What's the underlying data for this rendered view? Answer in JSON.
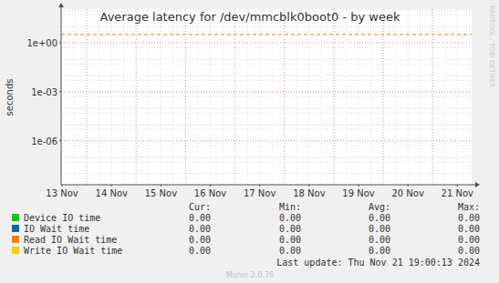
{
  "chart_data": {
    "type": "line",
    "title": "Average latency for /dev/mmcblk0boot0 - by week",
    "y_label": "seconds",
    "side_text": "RRDTOOL / TOBI OETIKER",
    "footer": "Munin 2.0.76",
    "last_update": "Last update: Thu Nov 21 19:00:13 2024",
    "log": "y",
    "grid": true,
    "xlim": [
      13.48,
      21.79
    ],
    "xticks": [
      {
        "value": 13.5,
        "label": "13 Nov"
      },
      {
        "value": 14.5,
        "label": "14 Nov"
      },
      {
        "value": 15.5,
        "label": "15 Nov"
      },
      {
        "value": 16.5,
        "label": "16 Nov"
      },
      {
        "value": 17.5,
        "label": "17 Nov"
      },
      {
        "value": 18.5,
        "label": "18 Nov"
      },
      {
        "value": 19.5,
        "label": "19 Nov"
      },
      {
        "value": 20.5,
        "label": "20 Nov"
      },
      {
        "value": 21.5,
        "label": "21 Nov"
      }
    ],
    "ylim": [
      2e-09,
      115
    ],
    "yticks": [
      {
        "value": 1e-06,
        "label": "1e-06"
      },
      {
        "value": 0.001,
        "label": "1e-03"
      },
      {
        "value": 1,
        "label": "1e+00"
      }
    ],
    "reference_lines": [
      {
        "value": 3.2,
        "color": "#ff8000",
        "line_style": "dashed"
      }
    ],
    "stat_columns": [
      "Cur:",
      "Min:",
      "Avg:",
      "Max:"
    ],
    "series": [
      {
        "name": "Device IO time",
        "color": "#00cc00",
        "values": [
          0,
          0,
          0,
          0
        ],
        "value_labels": [
          "0.00",
          "0.00",
          "0.00",
          "0.00"
        ]
      },
      {
        "name": "IO Wait time",
        "color": "#0066b3",
        "values": [
          0,
          0,
          0,
          0
        ],
        "value_labels": [
          "0.00",
          "0.00",
          "0.00",
          "0.00"
        ]
      },
      {
        "name": "Read IO Wait time",
        "color": "#ff8000",
        "values": [
          0,
          0,
          0,
          0
        ],
        "value_labels": [
          "0.00",
          "0.00",
          "0.00",
          "0.00"
        ]
      },
      {
        "name": "Write IO Wait time",
        "color": "#ffcc00",
        "values": [
          0,
          0,
          0,
          0
        ],
        "value_labels": [
          "0.00",
          "0.00",
          "0.00",
          "0.00"
        ]
      }
    ]
  }
}
